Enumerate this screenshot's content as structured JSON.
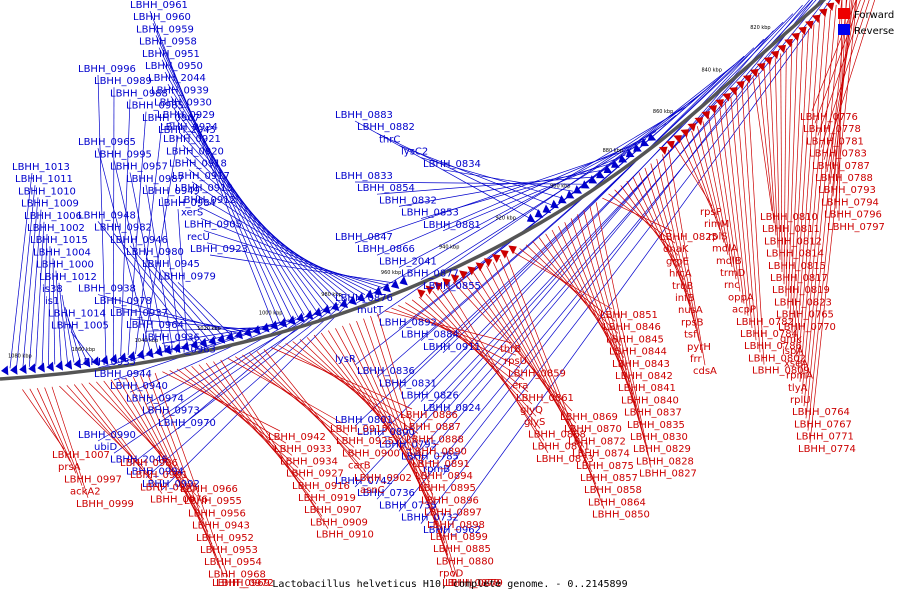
{
  "caption": "Lactobacillus helveticus H10, complete genome. - 0..2145899",
  "legend": [
    {
      "label": "Forward",
      "color": "#ee0000"
    },
    {
      "label": "Reverse",
      "color": "#0000ee"
    }
  ],
  "colors": {
    "forward": "#cc0000",
    "reverse": "#0000cc",
    "backbone": "#555555"
  },
  "kbp_ticks": [
    "1080 kbp",
    "1060 kbp",
    "1040 kbp",
    "1020 kbp",
    "1000 kbp",
    "980 kbp",
    "960 kbp",
    "940 kbp",
    "920 kbp",
    "900 kbp",
    "880 kbp",
    "860 kbp",
    "840 kbp",
    "820 kbp",
    "800 kbp",
    "780 kbp"
  ],
  "reverse_labels": [
    "LBHH_0961",
    "LBHH_0960",
    "LBHH_0959",
    "LBHH_0958",
    "LBHH_0951",
    "LBHH_0950",
    "LBHH_2044",
    "LBHH_0939",
    "LBHH_0930",
    "LBHH_0929",
    "LBHH_0924",
    "LBHH_0921",
    "LBHH_0920",
    "LBHH_0918",
    "LBHH_0917",
    "LBHH_0913",
    "LBHH_0912",
    "xerS",
    "LBHH_0905",
    "recU",
    "LBHH_0923",
    "LBHH_0996",
    "LBHH_0989",
    "LBHH_0988",
    "LBHH_0985",
    "LBHH_0967",
    "LBHH_2045",
    "LBHH_0965",
    "LBHH_0995",
    "LBHH_0957",
    "LBHH_0987",
    "LBHH_0949",
    "LBHH_0984",
    "LBHH_0948",
    "LBHH_0982",
    "LBHH_0946",
    "LBHH_0980",
    "LBHH_0945",
    "LBHH_0979",
    "LBHH_0938",
    "LBHH_0978",
    "LBHH_0937",
    "LBHH_0964",
    "LBHH_0936",
    "LBHH_0963",
    "LBHH_0935",
    "LBHH_0944",
    "LBHH_0940",
    "LBHH_0974",
    "LBHH_0973",
    "LBHH_0970",
    "LBHH_0990",
    "ubiD",
    "LBHH_2046",
    "LBHH_0994",
    "LBHH_0992",
    "LBHH_1013",
    "LBHH_1011",
    "LBHH_1010",
    "LBHH_1009",
    "LBHH_1006",
    "LBHH_1002",
    "LBHH_1015",
    "LBHH_1004",
    "LBHH_1000",
    "LBHH_1012",
    "is38",
    "is1",
    "LBHH_1014",
    "LBHH_1005",
    "LBHH_0883",
    "LBHH_0882",
    "thrC",
    "lysC2",
    "LBHH_0834",
    "LBHH_0833",
    "LBHH_0854",
    "LBHH_0832",
    "LBHH_0853",
    "LBHH_0881",
    "LBHH_0847",
    "LBHH_0866",
    "LBHH_2041",
    "LBHH_0877",
    "LBHH_0855",
    "LBHH_0876",
    "mutT",
    "LBHH_0892",
    "LBHH_0884",
    "LBHH_0911",
    "lysR",
    "LBHH_0836",
    "LBHH_0831",
    "LBHH_0826",
    "LBHH_0824",
    "LBHH_0801",
    "LBHH_0800",
    "LBHH_0795",
    "LBHH_0785",
    "rpmB",
    "LBHH_0742",
    "LBHH_0736",
    "LBHH_0735",
    "LBHH_0732",
    "LBHH_0962"
  ],
  "forward_labels": [
    "LBHH_1007",
    "prsA",
    "LBHH_0997",
    "ackA2",
    "LBHH_0999",
    "LBHH_0986",
    "LBHH_0991",
    "LBHH_0975",
    "LBHH_0976",
    "LBHH_0966",
    "LBHH_0955",
    "LBHH_0956",
    "LBHH_0943",
    "LBHH_0952",
    "LBHH_0953",
    "LBHH_0954",
    "LBHH_0968",
    "LBHH_0969",
    "LBHH_0972",
    "LBHH_0942",
    "LBHH_0933",
    "LBHH_0934",
    "LBHH_0927",
    "LBHH_0916",
    "LBHH_0919",
    "LBHH_0907",
    "LBHH_0909",
    "LBHH_0910",
    "LBHH_0915",
    "LBHH_0925",
    "LBHH_0900",
    "carB",
    "LBHH_0902",
    "asnC",
    "LBHH_0886",
    "LBHH_0887",
    "LBHH_0888",
    "LBHH_0890",
    "LBHH_0891",
    "LBHH_0894",
    "LBHH_0895",
    "LBHH_0896",
    "LBHH_0897",
    "LBHH_0898",
    "LBHH_0899",
    "LBHH_0885",
    "LBHH_0880",
    "rpoD",
    "LBHH_0878",
    "LBHH_0879",
    "thrB",
    "rpsU",
    "LBHH_0859",
    "era",
    "LBHH_0861",
    "glyQ",
    "glyS",
    "LBHH_0868",
    "LBHH_0871",
    "LBHH_0873",
    "LBHH_0869",
    "LBHH_0870",
    "LBHH_0872",
    "LBHH_0874",
    "LBHH_0875",
    "LBHH_0857",
    "LBHH_0858",
    "LBHH_0864",
    "LBHH_0850",
    "LBHH_0851",
    "LBHH_0846",
    "LBHH_0845",
    "LBHH_0844",
    "LBHH_0843",
    "LBHH_0842",
    "LBHH_0841",
    "LBHH_0840",
    "LBHH_0837",
    "LBHH_0835",
    "LBHH_0830",
    "LBHH_0829",
    "LBHH_0828",
    "LBHH_0827",
    "LBHH_0825",
    "dnaK",
    "grpE",
    "hrcA",
    "truB",
    "infB",
    "nusA",
    "rpsB",
    "tsf",
    "pyrH",
    "frr",
    "cdsA",
    "rpsP",
    "rimM",
    "rplS",
    "mdlA",
    "mdlB",
    "trmD",
    "rnc",
    "oppA",
    "acpP",
    "LBHH_0782",
    "LBHH_0784",
    "LBHH_0786",
    "LBHH_0802",
    "LBHH_0809",
    "LBHH_0810",
    "LBHH_0811",
    "LBHH_0812",
    "LBHH_0814",
    "LBHH_0815",
    "LBHH_0817",
    "LBHH_0819",
    "LBHH_0823",
    "LBHH_0765",
    "LBHH_0770",
    "gmk",
    "ispA",
    "xseA",
    "rpmA",
    "tlyA",
    "rplU",
    "LBHH_0764",
    "LBHH_0767",
    "LBHH_0771",
    "LBHH_0774",
    "LBHH_0776",
    "LBHH_0778",
    "LBHH_0781",
    "LBHH_0783",
    "LBHH_0787",
    "LBHH_0788",
    "LBHH_0793",
    "LBHH_0794",
    "LBHH_0796",
    "LBHH_0797"
  ]
}
